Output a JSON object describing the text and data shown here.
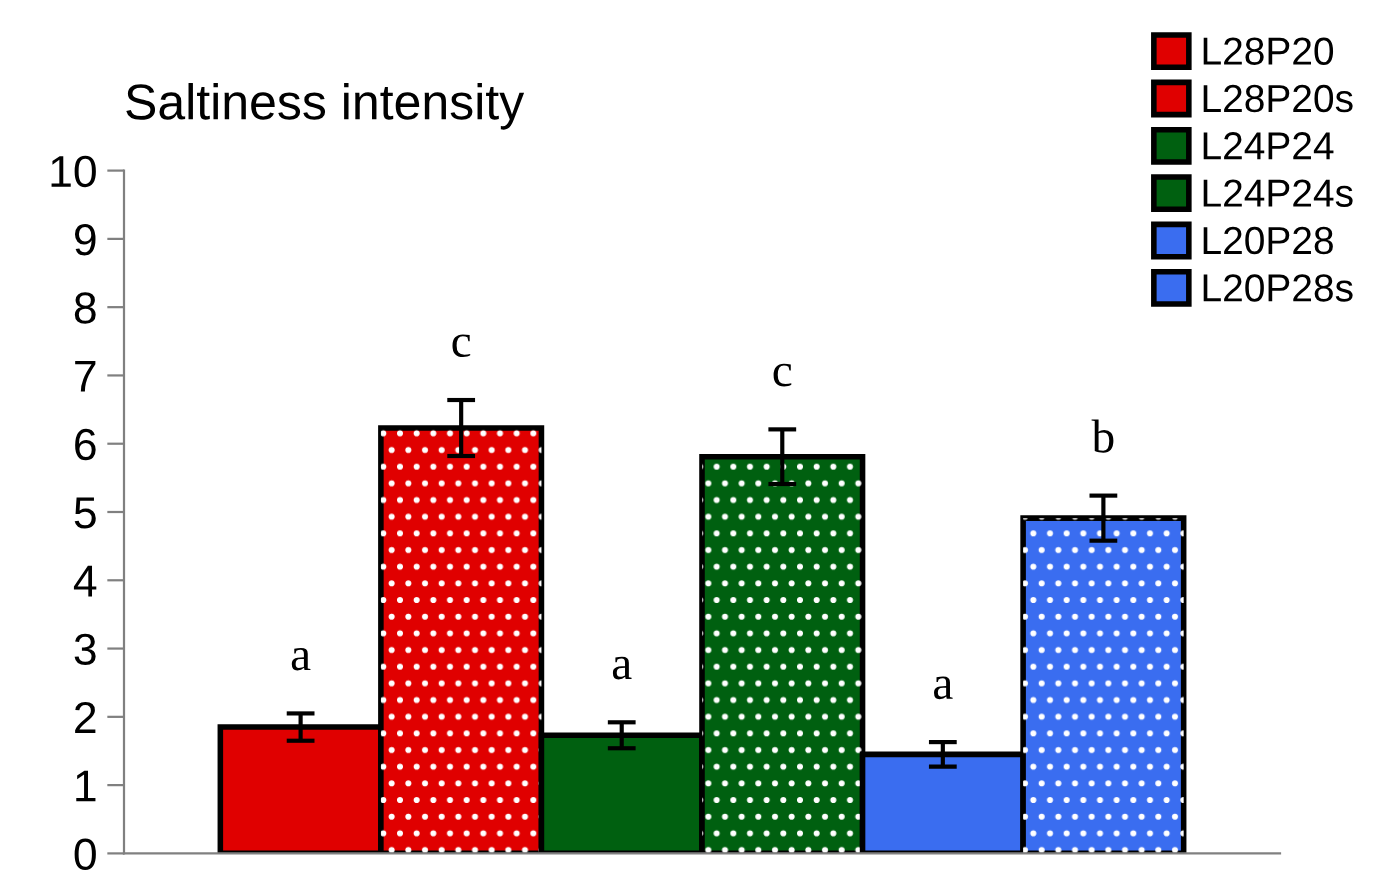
{
  "chart_data": {
    "type": "bar",
    "title": "Saltiness intensity",
    "categories": [
      null
    ],
    "series": [
      {
        "name": "L28P20",
        "color": "#e00000",
        "values": [
          1.85
        ],
        "errors": [
          0.2
        ]
      },
      {
        "name": "L28P20s",
        "color": "#e00000",
        "values": [
          6.23
        ],
        "errors": [
          0.41
        ]
      },
      {
        "name": "L24P24",
        "color": "#006010",
        "values": [
          1.73
        ],
        "errors": [
          0.19
        ]
      },
      {
        "name": "L24P24s",
        "color": "#006010",
        "values": [
          5.81
        ],
        "errors": [
          0.4
        ]
      },
      {
        "name": "L20P28",
        "color": "#3a6df0",
        "values": [
          1.45
        ],
        "errors": [
          0.18
        ]
      },
      {
        "name": "L20P28s",
        "color": "#3a6df0",
        "values": [
          4.91
        ],
        "errors": [
          0.33
        ]
      }
    ],
    "annotations": [
      "a",
      "c",
      "a",
      "c",
      "a",
      "b"
    ],
    "ylim": [
      0,
      10
    ],
    "yticks": [
      0,
      1,
      2,
      3,
      4,
      5,
      6,
      7,
      8,
      9,
      10
    ],
    "grid": false,
    "legend": "top right"
  }
}
